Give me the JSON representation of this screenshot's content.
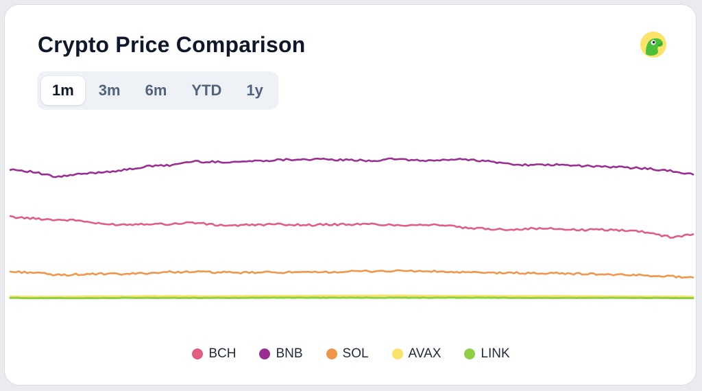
{
  "header": {
    "title": "Crypto Price Comparison",
    "logo_icon": "gecko-logo-icon"
  },
  "tabs": [
    {
      "label": "1m",
      "active": true
    },
    {
      "label": "3m",
      "active": false
    },
    {
      "label": "6m",
      "active": false
    },
    {
      "label": "YTD",
      "active": false
    },
    {
      "label": "1y",
      "active": false
    }
  ],
  "chart_data": {
    "type": "line",
    "title": "Crypto Price Comparison",
    "xlabel": "",
    "ylabel": "",
    "grid": false,
    "legend_position": "bottom",
    "x": [
      0,
      1,
      2,
      3,
      4,
      5,
      6,
      7,
      8,
      9,
      10,
      11,
      12,
      13,
      14,
      15,
      16,
      17,
      18,
      19,
      20,
      21,
      22,
      23,
      24,
      25,
      26,
      27,
      28,
      29,
      30
    ],
    "ylim": [
      0,
      100
    ],
    "series": [
      {
        "name": "BCH",
        "color": "#e05c80",
        "values": [
          56.5,
          55.8,
          55.2,
          54.9,
          53.2,
          53.0,
          53.4,
          53.2,
          54.0,
          52.8,
          52.6,
          53.0,
          53.1,
          52.8,
          53.0,
          53.1,
          53.2,
          52.7,
          53.0,
          52.8,
          51.4,
          51.0,
          50.8,
          51.2,
          51.1,
          50.5,
          50.7,
          50.4,
          49.6,
          47.2,
          48.6
        ]
      },
      {
        "name": "BNB",
        "color": "#9a2d92",
        "values": [
          78.3,
          77.0,
          74.6,
          75.9,
          76.9,
          77.8,
          79.5,
          80.0,
          81.8,
          81.5,
          81.6,
          82.1,
          82.6,
          82.8,
          82.6,
          82.3,
          82.1,
          83.0,
          82.0,
          82.4,
          82.8,
          81.8,
          80.5,
          80.1,
          80.2,
          79.8,
          79.4,
          79.0,
          78.6,
          77.4,
          75.8
        ]
      },
      {
        "name": "SOL",
        "color": "#f0964b",
        "values": [
          31.5,
          31.2,
          30.0,
          30.3,
          30.5,
          30.4,
          30.9,
          31.4,
          31.5,
          31.3,
          31.0,
          31.2,
          31.3,
          31.1,
          31.4,
          31.6,
          31.8,
          31.9,
          31.8,
          31.5,
          31.2,
          31.0,
          31.0,
          30.8,
          30.8,
          30.6,
          30.4,
          30.0,
          29.9,
          29.4,
          28.9
        ]
      },
      {
        "name": "AVAX",
        "color": "#fbe36a",
        "values": [
          20.2,
          20.1,
          20.1,
          20.2,
          20.3,
          20.3,
          20.4,
          20.4,
          20.4,
          20.3,
          20.4,
          20.5,
          20.5,
          20.5,
          20.6,
          20.6,
          20.6,
          20.6,
          20.6,
          20.5,
          20.5,
          20.5,
          20.4,
          20.4,
          20.4,
          20.3,
          20.3,
          20.3,
          20.2,
          20.2,
          20.1
        ]
      },
      {
        "name": "LINK",
        "color": "#8fcf46",
        "values": [
          19.6,
          19.5,
          19.5,
          19.5,
          19.5,
          19.6,
          19.6,
          19.6,
          19.6,
          19.6,
          19.6,
          19.7,
          19.7,
          19.7,
          19.7,
          19.7,
          19.7,
          19.7,
          19.7,
          19.7,
          19.7,
          19.7,
          19.6,
          19.6,
          19.6,
          19.6,
          19.6,
          19.6,
          19.6,
          19.5,
          19.5
        ]
      }
    ]
  }
}
